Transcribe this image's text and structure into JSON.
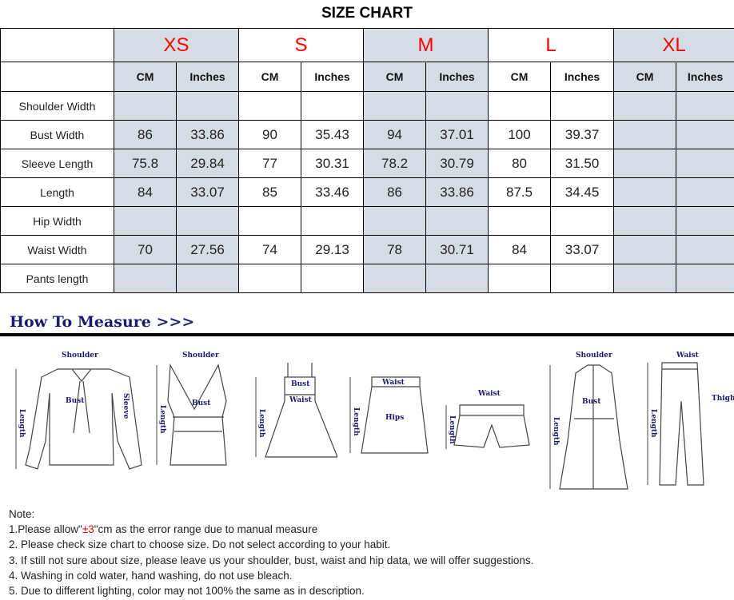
{
  "title": "SIZE CHART",
  "sizes": [
    "XS",
    "S",
    "M",
    "L",
    "XL"
  ],
  "units": {
    "cm": "CM",
    "inches": "Inches"
  },
  "rows": [
    {
      "label": "Shoulder Width",
      "values": [
        "",
        "",
        "",
        "",
        "",
        "",
        "",
        "",
        "",
        ""
      ]
    },
    {
      "label": "Bust Width",
      "values": [
        "86",
        "33.86",
        "90",
        "35.43",
        "94",
        "37.01",
        "100",
        "39.37",
        "",
        ""
      ]
    },
    {
      "label": "Sleeve Length",
      "values": [
        "75.8",
        "29.84",
        "77",
        "30.31",
        "78.2",
        "30.79",
        "80",
        "31.50",
        "",
        ""
      ]
    },
    {
      "label": "Length",
      "values": [
        "84",
        "33.07",
        "85",
        "33.46",
        "86",
        "33.86",
        "87.5",
        "34.45",
        "",
        ""
      ]
    },
    {
      "label": "Hip Width",
      "values": [
        "",
        "",
        "",
        "",
        "",
        "",
        "",
        "",
        "",
        ""
      ]
    },
    {
      "label": "Waist Width",
      "values": [
        "70",
        "27.56",
        "74",
        "29.13",
        "78",
        "30.71",
        "84",
        "33.07",
        "",
        ""
      ]
    },
    {
      "label": "Pants length",
      "values": [
        "",
        "",
        "",
        "",
        "",
        "",
        "",
        "",
        "",
        ""
      ]
    }
  ],
  "colors": {
    "size_label": "#ff0000",
    "shaded_column": "#d6dce4",
    "measure_title": "#1a1a6e"
  },
  "measure": {
    "title": "How To Measure >>>",
    "figures": [
      {
        "name": "blouse",
        "labels": [
          "Shoulder",
          "Bust",
          "Sleeve",
          "Length"
        ]
      },
      {
        "name": "tank-top",
        "labels": [
          "Shoulder",
          "Bust",
          "Length"
        ]
      },
      {
        "name": "dress",
        "labels": [
          "Bust",
          "Waist",
          "Length"
        ]
      },
      {
        "name": "skirt",
        "labels": [
          "Waist",
          "Hips",
          "Length"
        ]
      },
      {
        "name": "shorts",
        "labels": [
          "Waist",
          "Length"
        ]
      },
      {
        "name": "coat",
        "labels": [
          "Shoulder",
          "Bust",
          "Length"
        ]
      },
      {
        "name": "pants",
        "labels": [
          "Waist",
          "Thigh",
          "Length"
        ]
      }
    ]
  },
  "notes": {
    "heading": "Note:",
    "n1_pre": "1.Please allow\"",
    "n1_red": "±3",
    "n1_post": "\"cm as the error range due to manual measure",
    "n2": "2. Please check size chart to choose size. Do not select according to your habit.",
    "n3": "3. If still not sure about size, please leave us your shoulder, bust, waist and hip data, we will offer suggestions.",
    "n4": "4. Washing in cold water, hand washing, do not use bleach.",
    "n5": "5. Due to different lighting, color may not 100% the same as in description."
  }
}
